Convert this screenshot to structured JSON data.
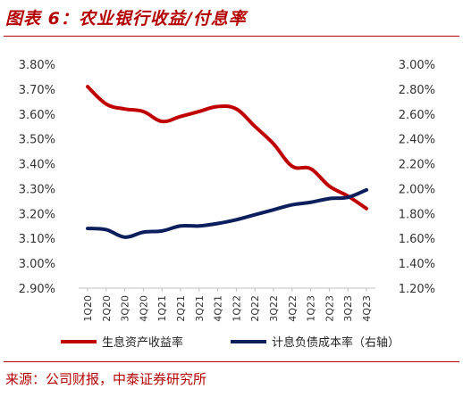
{
  "title": "图表 6：农业银行收益/付息率",
  "source": "来源：公司财报，中泰证券研究所",
  "chart_data": {
    "type": "line",
    "categories": [
      "1Q20",
      "2Q20",
      "3Q20",
      "4Q20",
      "1Q21",
      "2Q21",
      "3Q21",
      "4Q21",
      "1Q22",
      "2Q22",
      "3Q22",
      "4Q22",
      "1Q23",
      "2Q23",
      "3Q23",
      "4Q23"
    ],
    "y_left": {
      "ylim": [
        2.9,
        3.8
      ],
      "ticks": [
        "2.90%",
        "3.00%",
        "3.10%",
        "3.20%",
        "3.30%",
        "3.40%",
        "3.50%",
        "3.60%",
        "3.70%",
        "3.80%"
      ],
      "tick_values": [
        2.9,
        3.0,
        3.1,
        3.2,
        3.3,
        3.4,
        3.5,
        3.6,
        3.7,
        3.8
      ]
    },
    "y_right": {
      "ylim": [
        1.2,
        3.0
      ],
      "ticks": [
        "1.20%",
        "1.40%",
        "1.60%",
        "1.80%",
        "2.00%",
        "2.20%",
        "2.40%",
        "2.60%",
        "2.80%",
        "3.00%"
      ],
      "tick_values": [
        1.2,
        1.4,
        1.6,
        1.8,
        2.0,
        2.2,
        2.4,
        2.6,
        2.8,
        3.0
      ]
    },
    "series": [
      {
        "name": "生息资产收益率",
        "axis": "left",
        "color": "#c00000",
        "values": [
          3.71,
          3.64,
          3.62,
          3.61,
          3.57,
          3.59,
          3.61,
          3.63,
          3.62,
          3.55,
          3.48,
          3.39,
          3.38,
          3.31,
          3.27,
          3.22
        ]
      },
      {
        "name": "计息负债成本率（右轴）",
        "axis": "right",
        "color": "#0b1f5c",
        "values": [
          1.68,
          1.67,
          1.61,
          1.65,
          1.66,
          1.7,
          1.7,
          1.72,
          1.75,
          1.79,
          1.83,
          1.87,
          1.89,
          1.92,
          1.93,
          1.99
        ]
      }
    ],
    "legend_position": "bottom",
    "grid": false
  }
}
